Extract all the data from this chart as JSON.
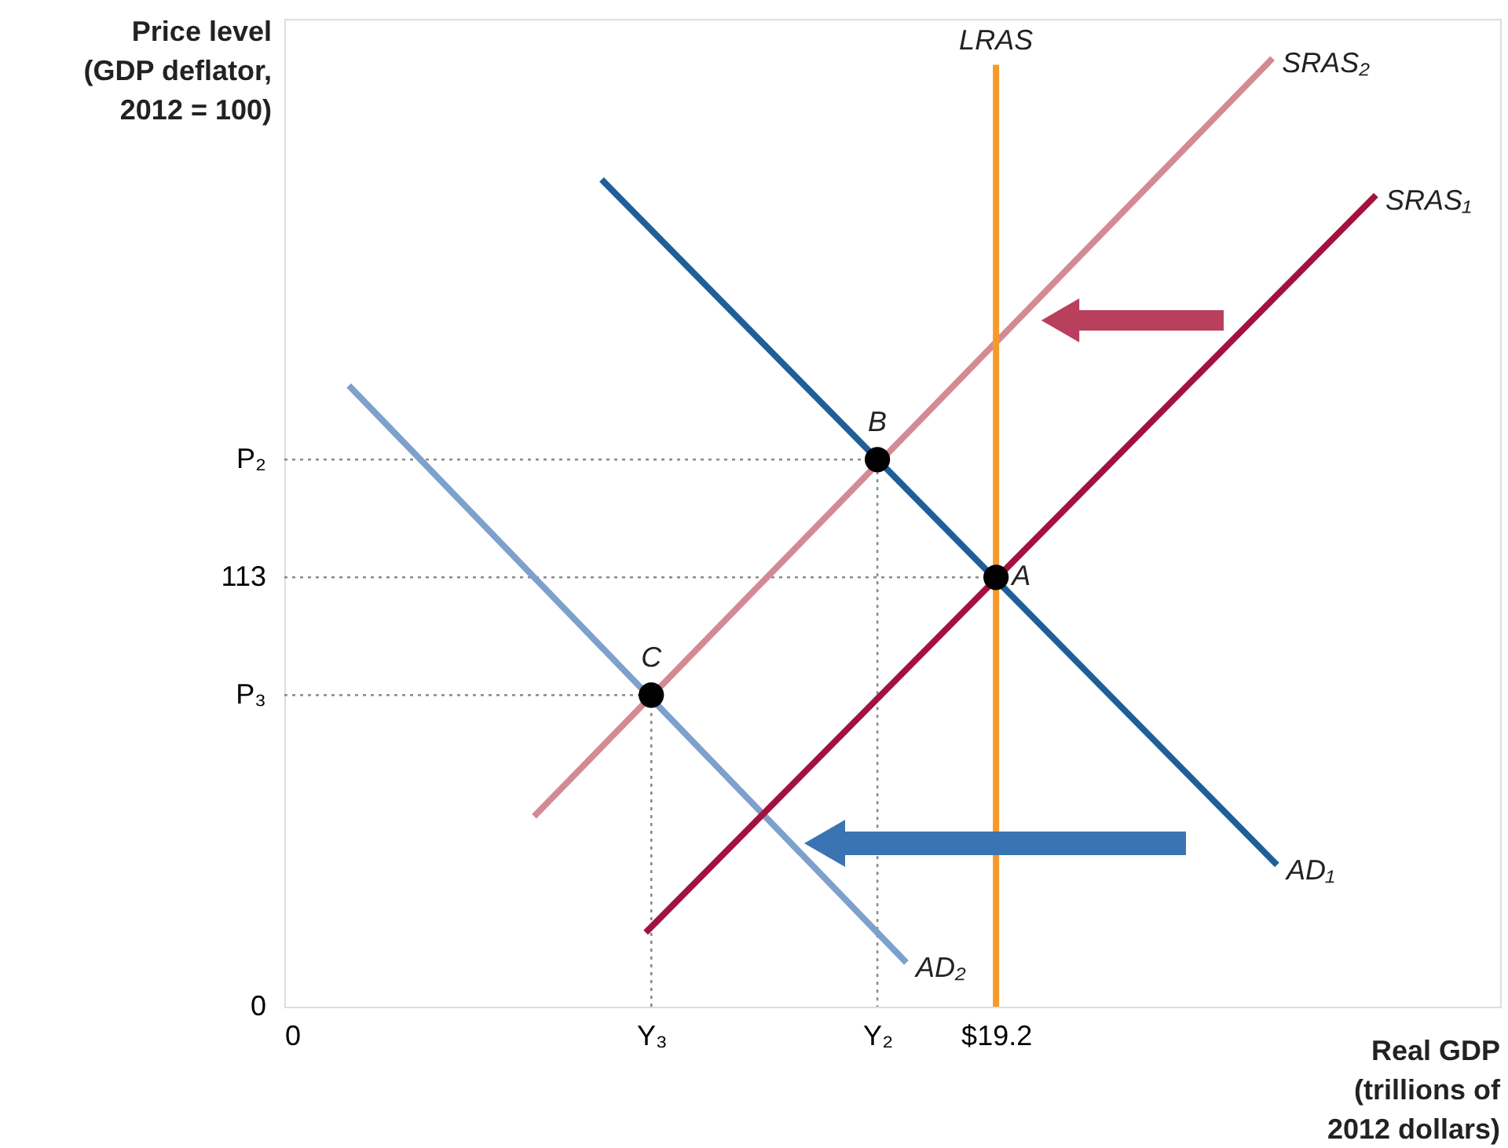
{
  "chart_data": {
    "type": "line",
    "xlabel": "Real GDP\n(trillions of\n2012 dollars)",
    "ylabel": "Price level\n(GDP deflator,\n2012 = 100)",
    "xlim": [
      0,
      32.8
    ],
    "ylim": [
      0,
      260
    ],
    "xticks": [
      0,
      {
        "value": 9.9,
        "label": "Y₃"
      },
      {
        "value": 16.0,
        "label": "Y₂"
      },
      {
        "value": 19.2,
        "label": "$19.2"
      }
    ],
    "yticks": [
      0,
      {
        "value": 82,
        "label": "P₃"
      },
      113,
      {
        "value": 144,
        "label": "P₂"
      }
    ],
    "grid": false,
    "line_style": "solid",
    "series": [
      {
        "line_style": "dotted",
        "color": "#8a8a8a",
        "x": [
          0,
          16.0,
          16.0
        ],
        "values": [
          144,
          144,
          0
        ]
      },
      {
        "line_style": "dotted",
        "color": "#8a8a8a",
        "x": [
          0,
          19.2
        ],
        "values": [
          113,
          113
        ]
      },
      {
        "line_style": "dotted",
        "color": "#8a8a8a",
        "x": [
          0,
          9.9,
          9.9
        ],
        "values": [
          82,
          82,
          0
        ]
      },
      {
        "name": "AD₂",
        "color": "#7ea0cc",
        "x": [
          1.74,
          16.78
        ],
        "values": [
          163.5,
          11.6
        ]
      },
      {
        "name": "AD₁",
        "color": "#1f5f99",
        "x": [
          8.56,
          26.78
        ],
        "values": [
          217.7,
          37.3
        ]
      },
      {
        "name": "SRAS₁",
        "color": "#a3123f",
        "x": [
          9.75,
          29.45
        ],
        "values": [
          19.5,
          213.6
        ]
      },
      {
        "name": "SRAS₂",
        "color": "#d48a95",
        "x": [
          6.74,
          26.66
        ],
        "values": [
          50.1,
          249.6
        ]
      },
      {
        "name": "LRAS",
        "color": "#f59a2a",
        "x": [
          19.2,
          19.2
        ],
        "values": [
          0,
          247.9
        ]
      },
      {
        "type": "scatter",
        "marker": "circle",
        "color": "#000000",
        "x": [
          19.2,
          16.0,
          9.9
        ],
        "values": [
          113,
          144,
          82
        ]
      }
    ],
    "annotations": [
      "A",
      "B",
      "C"
    ]
  }
}
